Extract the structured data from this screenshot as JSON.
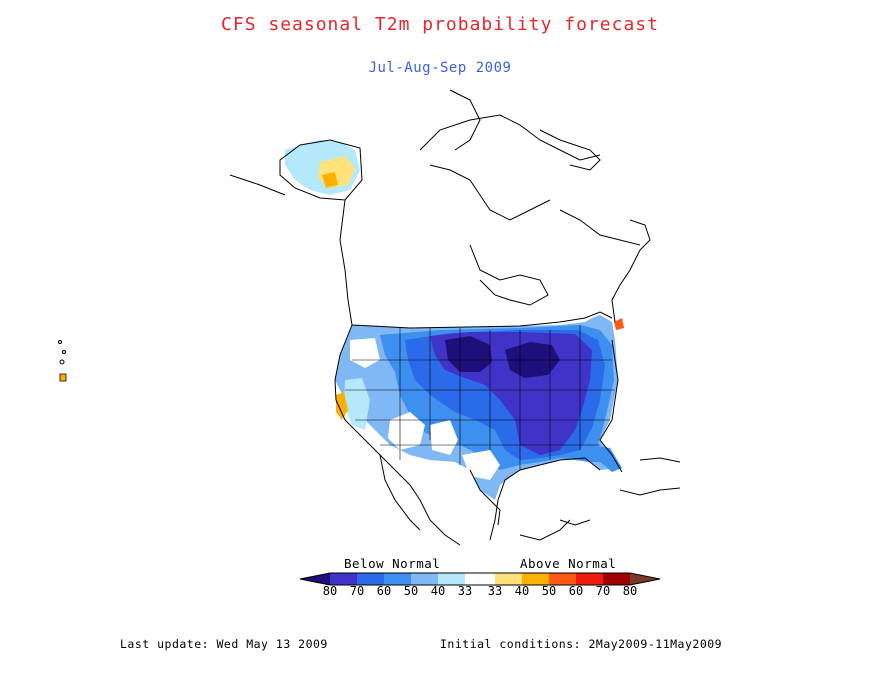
{
  "title": "CFS seasonal T2m probability forecast",
  "subtitle": "Jul-Aug-Sep 2009",
  "colors": {
    "title": "#e8262a",
    "subtitle": "#3c5fe6",
    "below_80": "#1e0f7a",
    "below_70": "#4034c8",
    "below_60": "#2b6ae8",
    "below_50": "#3d8ff0",
    "below_40": "#7fb8f5",
    "below_33": "#b4e8fb",
    "normal": "#ffffff",
    "above_33": "#ffe27a",
    "above_40": "#ffb000",
    "above_50": "#ff5a14",
    "above_60": "#ee1c10",
    "above_70": "#a00000",
    "above_80": "#c8a098",
    "above_max": "#7a3a26"
  },
  "legend": {
    "below_label": "Below Normal",
    "above_label": "Above Normal",
    "ticks": [
      "80",
      "70",
      "60",
      "50",
      "40",
      "33",
      "33",
      "40",
      "50",
      "60",
      "70",
      "80"
    ]
  },
  "footer": {
    "last_update": "Last update: Wed May 13 2009",
    "initial_conditions": "Initial conditions: 2May2009-11May2009"
  }
}
